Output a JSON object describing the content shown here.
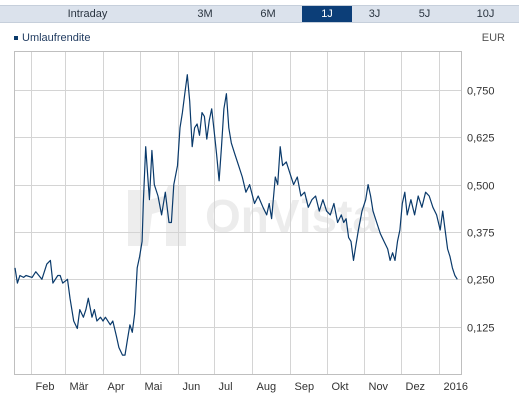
{
  "tabs": [
    {
      "label": "Intraday",
      "active": false
    },
    {
      "label": "3M",
      "active": false
    },
    {
      "label": "6M",
      "active": false
    },
    {
      "label": "1J",
      "active": true
    },
    {
      "label": "3J",
      "active": false
    },
    {
      "label": "5J",
      "active": false
    },
    {
      "label": "10J",
      "active": false
    }
  ],
  "legend": {
    "label": "Umlaufrendite"
  },
  "currency": "EUR",
  "watermark": "OnVista",
  "colors": {
    "line": "#0a3a6b",
    "active_tab": "#0c3e78",
    "tabbar": "#dbe2ec",
    "grid": "#d4d4d4"
  },
  "chart_data": {
    "type": "line",
    "title": "",
    "xlabel": "",
    "ylabel": "",
    "x_ticks": [
      "Feb",
      "Mär",
      "Apr",
      "Mai",
      "Jun",
      "Jul",
      "Aug",
      "Sep",
      "Okt",
      "Nov",
      "Dez",
      "2016"
    ],
    "y_ticks": [
      "0,125",
      "0,250",
      "0,375",
      "0,500",
      "0,625",
      "0,750"
    ],
    "y_tick_values": [
      0.125,
      0.25,
      0.375,
      0.5,
      0.625,
      0.75
    ],
    "ylim": [
      0.0,
      0.85
    ],
    "xlim": [
      "2015-01-19",
      "2016-01-19"
    ],
    "grid": true,
    "series": [
      {
        "name": "Umlaufrendite",
        "points": [
          [
            "2015-01-19",
            0.28
          ],
          [
            "2015-01-21",
            0.24
          ],
          [
            "2015-01-23",
            0.26
          ],
          [
            "2015-01-26",
            0.255
          ],
          [
            "2015-01-28",
            0.26
          ],
          [
            "2015-02-02",
            0.255
          ],
          [
            "2015-02-05",
            0.27
          ],
          [
            "2015-02-10",
            0.25
          ],
          [
            "2015-02-14",
            0.29
          ],
          [
            "2015-02-17",
            0.3
          ],
          [
            "2015-02-19",
            0.24
          ],
          [
            "2015-02-23",
            0.26
          ],
          [
            "2015-02-25",
            0.26
          ],
          [
            "2015-02-27",
            0.24
          ],
          [
            "2015-03-03",
            0.25
          ],
          [
            "2015-03-05",
            0.2
          ],
          [
            "2015-03-08",
            0.14
          ],
          [
            "2015-03-11",
            0.12
          ],
          [
            "2015-03-13",
            0.17
          ],
          [
            "2015-03-16",
            0.15
          ],
          [
            "2015-03-18",
            0.17
          ],
          [
            "2015-03-20",
            0.2
          ],
          [
            "2015-03-23",
            0.15
          ],
          [
            "2015-03-25",
            0.17
          ],
          [
            "2015-03-27",
            0.14
          ],
          [
            "2015-03-30",
            0.15
          ],
          [
            "2015-04-01",
            0.14
          ],
          [
            "2015-04-03",
            0.15
          ],
          [
            "2015-04-07",
            0.13
          ],
          [
            "2015-04-09",
            0.14
          ],
          [
            "2015-04-12",
            0.1
          ],
          [
            "2015-04-14",
            0.07
          ],
          [
            "2015-04-17",
            0.05
          ],
          [
            "2015-04-19",
            0.05
          ],
          [
            "2015-04-21",
            0.09
          ],
          [
            "2015-04-23",
            0.13
          ],
          [
            "2015-04-25",
            0.11
          ],
          [
            "2015-04-27",
            0.16
          ],
          [
            "2015-04-29",
            0.28
          ],
          [
            "2015-05-01",
            0.31
          ],
          [
            "2015-05-03",
            0.35
          ],
          [
            "2015-05-04",
            0.45
          ],
          [
            "2015-05-06",
            0.6
          ],
          [
            "2015-05-07",
            0.55
          ],
          [
            "2015-05-09",
            0.46
          ],
          [
            "2015-05-11",
            0.59
          ],
          [
            "2015-05-13",
            0.5
          ],
          [
            "2015-05-16",
            0.47
          ],
          [
            "2015-05-19",
            0.42
          ],
          [
            "2015-05-22",
            0.48
          ],
          [
            "2015-05-25",
            0.4
          ],
          [
            "2015-05-27",
            0.4
          ],
          [
            "2015-05-29",
            0.5
          ],
          [
            "2015-06-01",
            0.55
          ],
          [
            "2015-06-03",
            0.65
          ],
          [
            "2015-06-05",
            0.69
          ],
          [
            "2015-06-07",
            0.74
          ],
          [
            "2015-06-09",
            0.79
          ],
          [
            "2015-06-11",
            0.72
          ],
          [
            "2015-06-13",
            0.6
          ],
          [
            "2015-06-15",
            0.65
          ],
          [
            "2015-06-17",
            0.66
          ],
          [
            "2015-06-19",
            0.63
          ],
          [
            "2015-06-21",
            0.69
          ],
          [
            "2015-06-23",
            0.68
          ],
          [
            "2015-06-25",
            0.62
          ],
          [
            "2015-06-27",
            0.67
          ],
          [
            "2015-06-29",
            0.7
          ],
          [
            "2015-07-01",
            0.64
          ],
          [
            "2015-07-03",
            0.58
          ],
          [
            "2015-07-05",
            0.51
          ],
          [
            "2015-07-07",
            0.6
          ],
          [
            "2015-07-09",
            0.7
          ],
          [
            "2015-07-11",
            0.74
          ],
          [
            "2015-07-13",
            0.65
          ],
          [
            "2015-07-15",
            0.61
          ],
          [
            "2015-07-18",
            0.58
          ],
          [
            "2015-07-21",
            0.55
          ],
          [
            "2015-07-24",
            0.52
          ],
          [
            "2015-07-27",
            0.48
          ],
          [
            "2015-07-30",
            0.5
          ],
          [
            "2015-08-03",
            0.45
          ],
          [
            "2015-08-06",
            0.47
          ],
          [
            "2015-08-10",
            0.44
          ],
          [
            "2015-08-13",
            0.42
          ],
          [
            "2015-08-15",
            0.45
          ],
          [
            "2015-08-17",
            0.41
          ],
          [
            "2015-08-20",
            0.52
          ],
          [
            "2015-08-22",
            0.5
          ],
          [
            "2015-08-24",
            0.6
          ],
          [
            "2015-08-26",
            0.55
          ],
          [
            "2015-08-29",
            0.56
          ],
          [
            "2015-09-01",
            0.53
          ],
          [
            "2015-09-04",
            0.5
          ],
          [
            "2015-09-07",
            0.52
          ],
          [
            "2015-09-10",
            0.47
          ],
          [
            "2015-09-13",
            0.48
          ],
          [
            "2015-09-16",
            0.44
          ],
          [
            "2015-09-19",
            0.46
          ],
          [
            "2015-09-22",
            0.47
          ],
          [
            "2015-09-25",
            0.43
          ],
          [
            "2015-09-28",
            0.46
          ],
          [
            "2015-10-01",
            0.43
          ],
          [
            "2015-10-04",
            0.42
          ],
          [
            "2015-10-07",
            0.45
          ],
          [
            "2015-10-10",
            0.4
          ],
          [
            "2015-10-13",
            0.42
          ],
          [
            "2015-10-15",
            0.4
          ],
          [
            "2015-10-17",
            0.41
          ],
          [
            "2015-10-19",
            0.36
          ],
          [
            "2015-10-21",
            0.35
          ],
          [
            "2015-10-23",
            0.3
          ],
          [
            "2015-10-25",
            0.34
          ],
          [
            "2015-10-27",
            0.38
          ],
          [
            "2015-10-30",
            0.43
          ],
          [
            "2015-11-02",
            0.46
          ],
          [
            "2015-11-04",
            0.5
          ],
          [
            "2015-11-06",
            0.47
          ],
          [
            "2015-11-08",
            0.43
          ],
          [
            "2015-11-11",
            0.4
          ],
          [
            "2015-11-14",
            0.37
          ],
          [
            "2015-11-17",
            0.35
          ],
          [
            "2015-11-20",
            0.33
          ],
          [
            "2015-11-22",
            0.3
          ],
          [
            "2015-11-24",
            0.32
          ],
          [
            "2015-11-26",
            0.3
          ],
          [
            "2015-11-28",
            0.35
          ],
          [
            "2015-11-30",
            0.38
          ],
          [
            "2015-12-02",
            0.45
          ],
          [
            "2015-12-04",
            0.48
          ],
          [
            "2015-12-06",
            0.42
          ],
          [
            "2015-12-09",
            0.46
          ],
          [
            "2015-12-12",
            0.42
          ],
          [
            "2015-12-15",
            0.47
          ],
          [
            "2015-12-18",
            0.44
          ],
          [
            "2015-12-21",
            0.48
          ],
          [
            "2015-12-24",
            0.47
          ],
          [
            "2015-12-27",
            0.44
          ],
          [
            "2015-12-30",
            0.42
          ],
          [
            "2016-01-02",
            0.38
          ],
          [
            "2016-01-04",
            0.43
          ],
          [
            "2016-01-06",
            0.38
          ],
          [
            "2016-01-08",
            0.33
          ],
          [
            "2016-01-10",
            0.31
          ],
          [
            "2016-01-12",
            0.28
          ],
          [
            "2016-01-14",
            0.26
          ],
          [
            "2016-01-16",
            0.25
          ]
        ]
      }
    ]
  }
}
